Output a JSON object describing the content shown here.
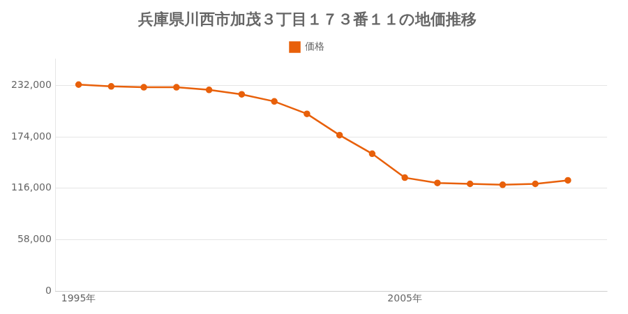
{
  "chart_data": {
    "type": "line",
    "title": "兵庫県川西市加茂３丁目１７３番１１の地価推移",
    "x": [
      1995,
      1996,
      1997,
      1998,
      1999,
      2000,
      2001,
      2002,
      2003,
      2004,
      2005,
      2006,
      2007,
      2008,
      2009,
      2010
    ],
    "series": [
      {
        "name": "価格",
        "color": "#e8600a",
        "marker": "circle",
        "line_style": "solid",
        "values": [
          233000,
          231000,
          230000,
          230000,
          227000,
          222000,
          214000,
          200000,
          176000,
          155000,
          128000,
          122000,
          121000,
          120000,
          121000,
          125000
        ]
      }
    ],
    "xlim": [
      1994.3,
      2011.2
    ],
    "xticks": [
      {
        "value": 1995,
        "label": "1995年"
      },
      {
        "value": 2005,
        "label": "2005年"
      }
    ],
    "ylim": [
      0,
      262000
    ],
    "yticks": [
      0,
      {
        "value": 58000,
        "label": "58,000"
      },
      {
        "value": 116000,
        "label": "116,000"
      },
      {
        "value": 174000,
        "label": "174,000"
      },
      {
        "value": 232000,
        "label": "232,000"
      }
    ],
    "grid": "y",
    "legend": "top"
  }
}
